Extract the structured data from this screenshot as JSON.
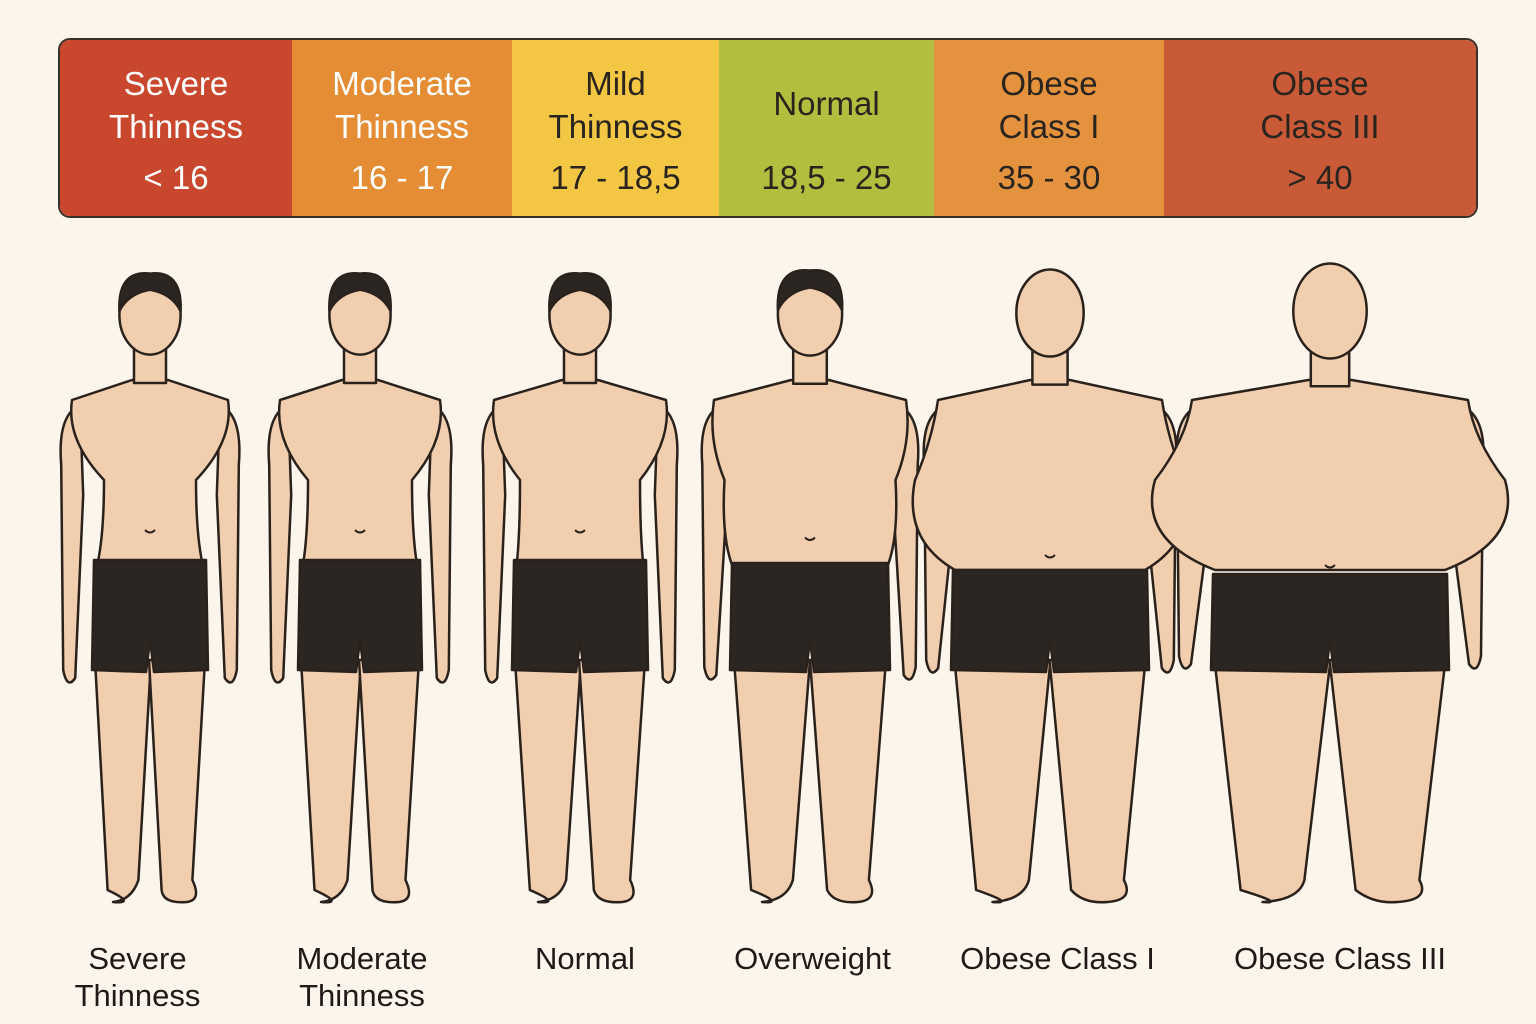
{
  "bar": {
    "segments": [
      {
        "name": "Severe\nThinness",
        "range": "< 16",
        "color": "#c9472c",
        "text_color": "#ffffff"
      },
      {
        "name": "Moderate\nThinness",
        "range": "16 - 17",
        "color": "#e48d34",
        "text_color": "#ffffff"
      },
      {
        "name": "Mild\nThinness",
        "range": "17 - 18,5",
        "color": "#f3c644",
        "text_color": "#2a241f"
      },
      {
        "name": "Normal",
        "range": "18,5 - 25",
        "color": "#b3bd3e",
        "text_color": "#2a241f"
      },
      {
        "name": "Obese\nClass I",
        "range": "35 - 30",
        "color": "#e5923f",
        "text_color": "#2a241f"
      },
      {
        "name": "Obese\nClass III",
        "range": "> 40",
        "color": "#c85a37",
        "text_color": "#2a241f"
      }
    ]
  },
  "captions": {
    "c1": "Severe\nThinness",
    "c2": "Moderate\nThinness",
    "c3": "Normal",
    "c4": "Overweight",
    "c5": "Obese Class I",
    "c6": "Obese Class III"
  },
  "colors": {
    "skin": "#f1cfae",
    "outline": "#2a211c",
    "hair": "#2b2521",
    "shorts": "#2b2622",
    "background": "#fbf5ec"
  }
}
